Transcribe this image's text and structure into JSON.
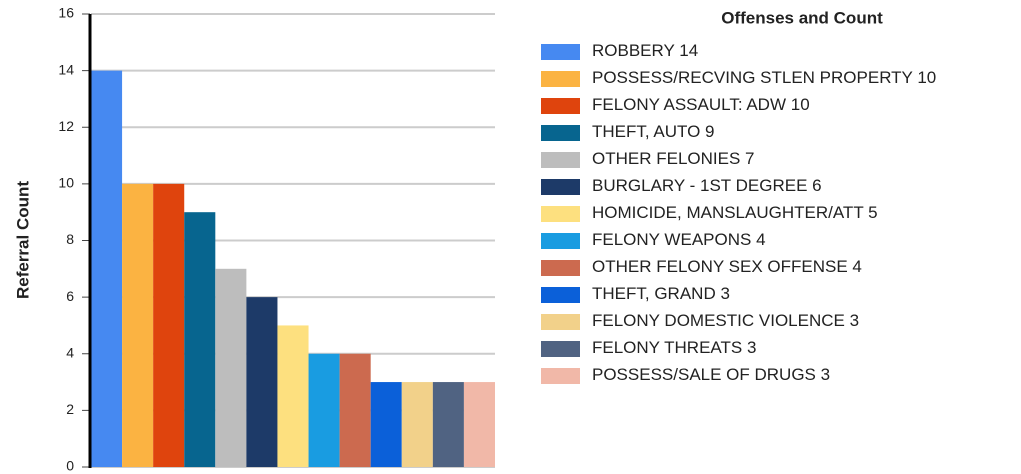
{
  "chart_data": {
    "type": "bar",
    "y_label": "Referral Count",
    "legend_title": "Offenses and Count",
    "ylim": [
      0,
      16
    ],
    "yticks": [
      0,
      2,
      4,
      6,
      8,
      10,
      12,
      14,
      16
    ],
    "grid": true,
    "series": [
      {
        "name": "ROBBERY",
        "color": "#4689f1",
        "values": [
          14
        ]
      },
      {
        "name": "POSSESS/RECVING STLEN PROPERTY",
        "color": "#fbb342",
        "values": [
          10
        ]
      },
      {
        "name": "FELONY ASSAULT: ADW",
        "color": "#df440d",
        "values": [
          10
        ]
      },
      {
        "name": "THEFT, AUTO",
        "color": "#07658f",
        "values": [
          9
        ]
      },
      {
        "name": "OTHER FELONIES",
        "color": "#bdbdbd",
        "values": [
          7
        ]
      },
      {
        "name": "BURGLARY - 1ST DEGREE",
        "color": "#1d3a68",
        "values": [
          6
        ]
      },
      {
        "name": "HOMICIDE, MANSLAUGHTER/ATT",
        "color": "#fde07f",
        "values": [
          5
        ]
      },
      {
        "name": "FELONY WEAPONS",
        "color": "#199ce1",
        "values": [
          4
        ]
      },
      {
        "name": "OTHER FELONY SEX OFFENSE",
        "color": "#cc6a4f",
        "values": [
          4
        ]
      },
      {
        "name": "THEFT, GRAND",
        "color": "#0b60d9",
        "values": [
          3
        ]
      },
      {
        "name": "FELONY DOMESTIC VIOLENCE",
        "color": "#f2d18a",
        "values": [
          3
        ]
      },
      {
        "name": "FELONY THREATS",
        "color": "#506382",
        "values": [
          3
        ]
      },
      {
        "name": "POSSESS/SALE OF DRUGS",
        "color": "#f1b8a8",
        "values": [
          3
        ]
      }
    ]
  }
}
